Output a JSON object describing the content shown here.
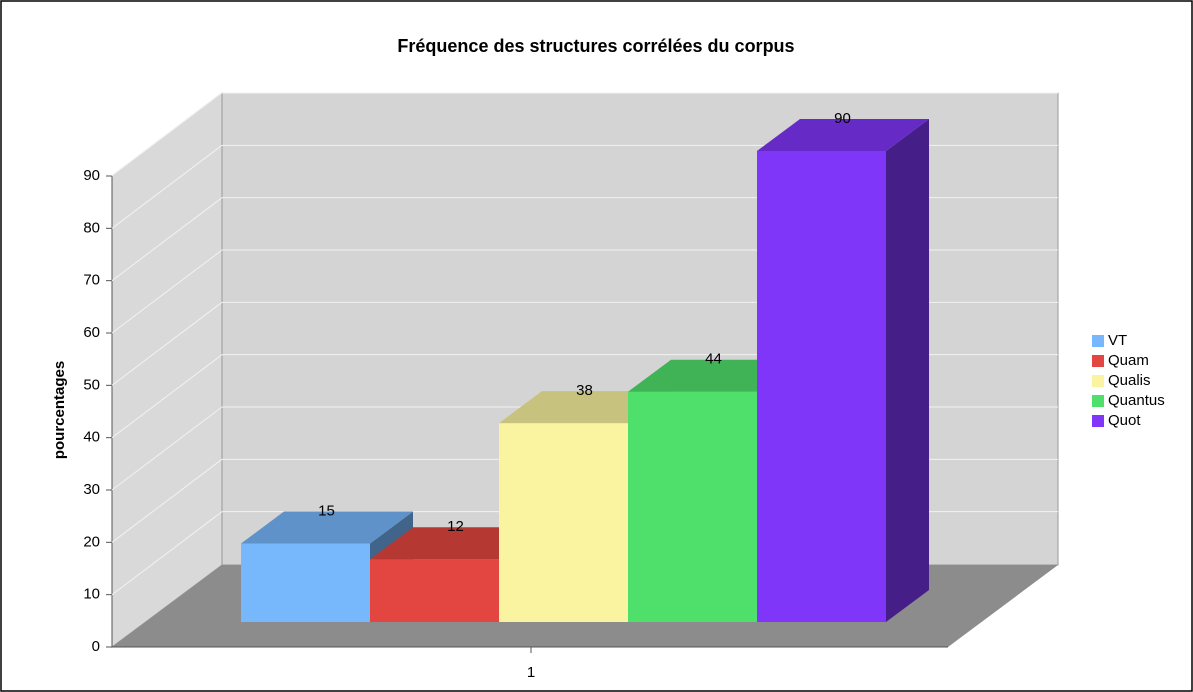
{
  "chart_data": {
    "type": "bar",
    "title": "Fréquence des structures corrélées du corpus",
    "y_label": "pourcentages",
    "categories": [
      "1"
    ],
    "series": [
      {
        "name": "VT",
        "color": "#77b7fb",
        "values": [
          15
        ]
      },
      {
        "name": "Quam",
        "color": "#e34640",
        "values": [
          12
        ]
      },
      {
        "name": "Qualis",
        "color": "#faf39f",
        "values": [
          38
        ]
      },
      {
        "name": "Quantus",
        "color": "#4fe06b",
        "values": [
          44
        ]
      },
      {
        "name": "Quot",
        "color": "#7f36f8",
        "values": [
          90
        ]
      }
    ],
    "ylim": [
      0,
      90
    ],
    "yticks": [
      0,
      10,
      20,
      30,
      40,
      50,
      60,
      70,
      80,
      90
    ],
    "grid": true,
    "legend": "right"
  }
}
